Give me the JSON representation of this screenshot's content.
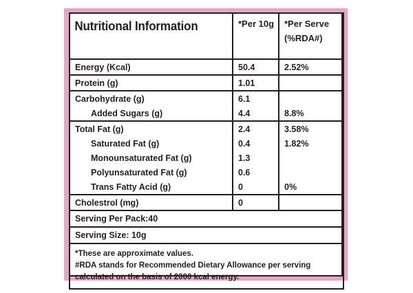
{
  "panel": {
    "title": "Nutritional Information",
    "col_per10g": "*Per 10g",
    "col_per_serve_line1": "*Per Serve",
    "col_per_serve_line2": "(%RDA#)",
    "colors": {
      "border": "#e7a6c4",
      "ink": "#231f20",
      "background": "#ffffff"
    }
  },
  "rows": [
    {
      "label": "Energy (Kcal)",
      "per10g": "50.4",
      "rda": "2.52%"
    },
    {
      "label": "Protein (g)",
      "per10g": "1.01",
      "rda": ""
    },
    {
      "label": "Carbohydrate (g)",
      "per10g": "6.1",
      "rda": ""
    },
    {
      "label": "Added Sugars (g)",
      "per10g": "4.4",
      "rda": "8.8%"
    },
    {
      "label": "Total Fat (g)",
      "per10g": "2.4",
      "rda": "3.58%"
    },
    {
      "label": "Saturated Fat (g)",
      "per10g": "0.4",
      "rda": "1.82%"
    },
    {
      "label": "Monounsaturated Fat (g)",
      "per10g": "1.3",
      "rda": ""
    },
    {
      "label": "Polyunsaturated Fat (g)",
      "per10g": "0.6",
      "rda": ""
    },
    {
      "label": "Trans Fatty Acid (g)",
      "per10g": "0",
      "rda": "0%"
    },
    {
      "label": "Cholestrol (mg)",
      "per10g": "0",
      "rda": ""
    }
  ],
  "serving_per_pack": "Serving Per Pack:40",
  "serving_size": "Serving Size: 10g",
  "notes": {
    "line1": "*These are approximate values.",
    "line2": "#RDA stands for Recommended Dietary Allowance per serving",
    "line3": "calculated on the basis of 2000 kcal energy."
  }
}
